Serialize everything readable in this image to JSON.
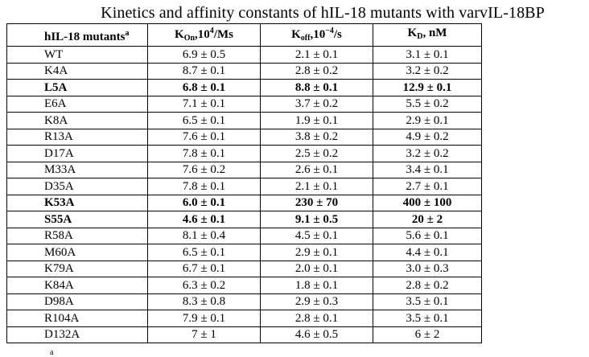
{
  "title": "Kinetics and affinity constants of hIL-18 mutants with varvIL-18BP",
  "table": {
    "headers": {
      "mutant": "hIL-18 mutants",
      "mutant_sup": "a",
      "kon_main": "K",
      "kon_sub": "On",
      "kon_unit_pre": ",10",
      "kon_exp": "4",
      "kon_unit_post": "/Ms",
      "koff_main": "K",
      "koff_sub": "off",
      "koff_unit_pre": ",10",
      "koff_exp": "−4",
      "koff_unit_post": "/s",
      "kd_main": "K",
      "kd_sub": "D",
      "kd_unit": ", nM"
    },
    "rows": [
      {
        "mutant": "WT",
        "kon": "6.9 ± 0.5",
        "koff": "2.1 ± 0.1",
        "kd": "3.1 ± 0.1",
        "bold": false
      },
      {
        "mutant": "K4A",
        "kon": "8.7 ± 0.1",
        "koff": "2.8 ± 0.2",
        "kd": "3.2 ± 0.2",
        "bold": false
      },
      {
        "mutant": "L5A",
        "kon": "6.8 ± 0.1",
        "koff": "8.8 ± 0.1",
        "kd": "12.9 ± 0.1",
        "bold": true
      },
      {
        "mutant": "E6A",
        "kon": "7.1 ± 0.1",
        "koff": "3.7 ± 0.2",
        "kd": "5.5 ± 0.2",
        "bold": false
      },
      {
        "mutant": "K8A",
        "kon": "6.5 ± 0.1",
        "koff": "1.9 ± 0.1",
        "kd": "2.9 ± 0.1",
        "bold": false
      },
      {
        "mutant": "R13A",
        "kon": "7.6 ± 0.1",
        "koff": "3.8 ± 0.2",
        "kd": "4.9 ± 0.2",
        "bold": false
      },
      {
        "mutant": "D17A",
        "kon": "7.8 ± 0.1",
        "koff": "2.5 ± 0.2",
        "kd": "3.2 ± 0.2",
        "bold": false
      },
      {
        "mutant": "M33A",
        "kon": "7.6 ± 0.2",
        "koff": "2.6 ± 0.1",
        "kd": "3.4 ± 0.1",
        "bold": false
      },
      {
        "mutant": "D35A",
        "kon": "7.8 ± 0.1",
        "koff": "2.1 ± 0.1",
        "kd": "2.7 ± 0.1",
        "bold": false
      },
      {
        "mutant": "K53A",
        "kon": "6.0 ± 0.1",
        "koff": "230 ± 70",
        "kd": "400 ± 100",
        "bold": true
      },
      {
        "mutant": "S55A",
        "kon": "4.6 ± 0.1",
        "koff": "9.1 ± 0.5",
        "kd": "20 ± 2",
        "bold": true
      },
      {
        "mutant": "R58A",
        "kon": "8.1 ± 0.4",
        "koff": "4.5 ± 0.1",
        "kd": "5.6 ± 0.1",
        "bold": false
      },
      {
        "mutant": "M60A",
        "kon": "6.5 ± 0.1",
        "koff": "2.9 ± 0.1",
        "kd": "4.4 ± 0.1",
        "bold": false
      },
      {
        "mutant": "K79A",
        "kon": "6.7 ± 0.1",
        "koff": "2.0 ± 0.1",
        "kd": "3.0 ± 0.3",
        "bold": false
      },
      {
        "mutant": "K84A",
        "kon": "6.3 ± 0.2",
        "koff": "1.8 ± 0.1",
        "kd": "2.8 ± 0.2",
        "bold": false
      },
      {
        "mutant": "D98A",
        "kon": "8.3 ± 0.8",
        "koff": "2.9 ± 0.3",
        "kd": "3.5 ± 0.1",
        "bold": false
      },
      {
        "mutant": "R104A",
        "kon": "7.9 ± 0.1",
        "koff": "2.8 ± 0.1",
        "kd": "3.5 ± 0.1",
        "bold": false
      },
      {
        "mutant": "D132A",
        "kon": "7 ± 1",
        "koff": "4.6 ± 0.5",
        "kd": "6 ± 2",
        "bold": false
      }
    ]
  },
  "footnote_mark": "a"
}
